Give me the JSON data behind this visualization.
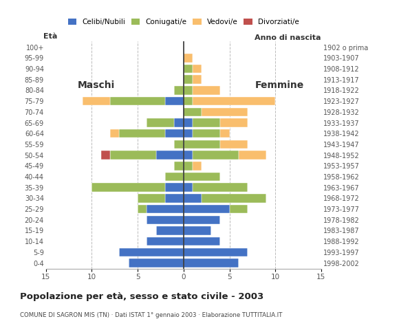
{
  "age_groups": [
    "0-4",
    "5-9",
    "10-14",
    "15-19",
    "20-24",
    "25-29",
    "30-34",
    "35-39",
    "40-44",
    "45-49",
    "50-54",
    "55-59",
    "60-64",
    "65-69",
    "70-74",
    "75-79",
    "80-84",
    "85-89",
    "90-94",
    "95-99",
    "100+"
  ],
  "birth_years": [
    "1998-2002",
    "1993-1997",
    "1988-1992",
    "1983-1987",
    "1978-1982",
    "1973-1977",
    "1968-1972",
    "1963-1967",
    "1958-1962",
    "1953-1957",
    "1948-1952",
    "1943-1947",
    "1938-1942",
    "1933-1937",
    "1928-1932",
    "1923-1927",
    "1918-1922",
    "1913-1917",
    "1908-1912",
    "1903-1907",
    "1902 o prima"
  ],
  "male": {
    "celibe": [
      6,
      7,
      4,
      3,
      4,
      4,
      2,
      2,
      0,
      0,
      3,
      0,
      2,
      1,
      0,
      2,
      0,
      0,
      0,
      0,
      0
    ],
    "coniugato": [
      0,
      0,
      0,
      0,
      0,
      1,
      3,
      8,
      2,
      1,
      5,
      1,
      5,
      3,
      0,
      6,
      1,
      0,
      0,
      0,
      0
    ],
    "vedovo": [
      0,
      0,
      0,
      0,
      0,
      0,
      0,
      0,
      0,
      0,
      0,
      0,
      1,
      0,
      0,
      3,
      0,
      0,
      0,
      0,
      0
    ],
    "divorziato": [
      0,
      0,
      0,
      0,
      0,
      0,
      0,
      0,
      0,
      0,
      1,
      0,
      0,
      0,
      0,
      0,
      0,
      0,
      0,
      0,
      0
    ]
  },
  "female": {
    "celibe": [
      6,
      7,
      4,
      3,
      4,
      5,
      2,
      1,
      0,
      0,
      1,
      0,
      1,
      1,
      0,
      0,
      0,
      0,
      0,
      0,
      0
    ],
    "coniugato": [
      0,
      0,
      0,
      0,
      0,
      2,
      7,
      6,
      4,
      1,
      5,
      4,
      3,
      3,
      2,
      1,
      1,
      1,
      1,
      0,
      0
    ],
    "vedovo": [
      0,
      0,
      0,
      0,
      0,
      0,
      0,
      0,
      0,
      1,
      3,
      3,
      1,
      3,
      5,
      9,
      3,
      1,
      1,
      1,
      0
    ],
    "divorziato": [
      0,
      0,
      0,
      0,
      0,
      0,
      0,
      0,
      0,
      0,
      0,
      0,
      0,
      0,
      0,
      0,
      0,
      0,
      0,
      0,
      0
    ]
  },
  "colors": {
    "celibe": "#4472C4",
    "coniugato": "#9BBB59",
    "vedovo": "#F9BE6D",
    "divorziato": "#C0504D"
  },
  "legend_labels": [
    "Celibi/Nubili",
    "Coniugati/e",
    "Vedovi/e",
    "Divorziati/e"
  ],
  "title": "Popolazione per età, sesso e stato civile - 2003",
  "subtitle": "COMUNE DI SAGRON MIS (TN) · Dati ISTAT 1° gennaio 2003 · Elaborazione TUTTITALIA.IT",
  "label_maschi": "Maschi",
  "label_femmine": "Femmine",
  "label_eta": "Età",
  "label_anno": "Anno di nascita",
  "xlim": 15
}
